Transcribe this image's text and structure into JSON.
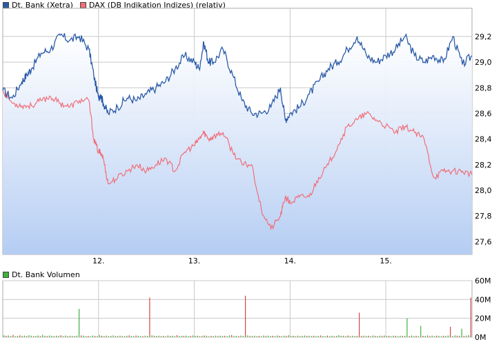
{
  "legend": {
    "series1": "Dt. Bank (Xetra)",
    "series2": "DAX (DB Indikation Indizes) (relativ)",
    "volume": "Dt. Bank Volumen"
  },
  "colors": {
    "price": "#2a5aa8",
    "dax": "#f06e78",
    "vol_green": "#3cb13c",
    "vol_red": "#d54545",
    "grid": "#c8c8c8"
  },
  "chart_data": [
    {
      "type": "line",
      "title": "",
      "x_ticks": [
        "12.",
        "13.",
        "14.",
        "15."
      ],
      "x_range": [
        0,
        4.9
      ],
      "y_ticks": [
        "29,2",
        "29,0",
        "28,8",
        "28,6",
        "28,4",
        "28,2",
        "28,0",
        "27,8",
        "27,6"
      ],
      "y_range": [
        27.5,
        29.42
      ],
      "grid": true,
      "legend_position": "top-left",
      "series": [
        {
          "name": "Dt. Bank (Xetra)",
          "x": [
            0,
            0.1,
            0.2,
            0.25,
            0.3,
            0.4,
            0.5,
            0.6,
            0.7,
            0.8,
            0.9,
            0.95,
            1.0,
            1.02,
            1.05,
            1.1,
            1.2,
            1.3,
            1.4,
            1.5,
            1.6,
            1.7,
            1.8,
            1.9,
            2.0,
            2.05,
            2.1,
            2.15,
            2.2,
            2.3,
            2.4,
            2.5,
            2.6,
            2.7,
            2.8,
            2.9,
            2.95,
            3.0,
            3.1,
            3.2,
            3.3,
            3.4,
            3.5,
            3.6,
            3.7,
            3.8,
            3.9,
            4.0,
            4.1,
            4.2,
            4.3,
            4.4,
            4.5,
            4.6,
            4.7,
            4.8,
            4.9
          ],
          "values": [
            28.78,
            28.72,
            28.85,
            28.9,
            28.95,
            29.07,
            29.1,
            29.21,
            29.17,
            29.2,
            29.1,
            28.9,
            28.72,
            28.75,
            28.68,
            28.6,
            28.65,
            28.72,
            28.7,
            28.75,
            28.8,
            28.85,
            28.95,
            29.05,
            29.0,
            28.95,
            29.15,
            29.0,
            29.0,
            29.1,
            28.9,
            28.7,
            28.6,
            28.6,
            28.65,
            28.8,
            28.55,
            28.6,
            28.65,
            28.75,
            28.85,
            28.95,
            29.0,
            29.1,
            29.2,
            29.05,
            29.0,
            29.05,
            29.1,
            29.2,
            29.05,
            29.0,
            29.05,
            29.0,
            29.2,
            28.98,
            29.05
          ]
        },
        {
          "name": "DAX (DB Indikation Indizes) (relativ)",
          "x": [
            0,
            0.1,
            0.2,
            0.3,
            0.4,
            0.5,
            0.6,
            0.7,
            0.8,
            0.9,
            0.95,
            1.0,
            1.02,
            1.05,
            1.1,
            1.2,
            1.3,
            1.4,
            1.5,
            1.6,
            1.7,
            1.8,
            1.9,
            2.0,
            2.05,
            2.1,
            2.15,
            2.2,
            2.3,
            2.4,
            2.5,
            2.6,
            2.7,
            2.8,
            2.9,
            2.95,
            3.0,
            3.1,
            3.2,
            3.3,
            3.4,
            3.5,
            3.6,
            3.7,
            3.8,
            3.9,
            4.0,
            4.1,
            4.2,
            4.3,
            4.4,
            4.5,
            4.6,
            4.7,
            4.8,
            4.9
          ],
          "values": [
            28.78,
            28.68,
            28.66,
            28.66,
            28.7,
            28.73,
            28.68,
            28.65,
            28.7,
            28.7,
            28.4,
            28.3,
            28.3,
            28.25,
            28.05,
            28.1,
            28.15,
            28.2,
            28.15,
            28.2,
            28.25,
            28.15,
            28.3,
            28.35,
            28.4,
            28.45,
            28.4,
            28.42,
            28.45,
            28.3,
            28.2,
            28.2,
            27.85,
            27.7,
            27.8,
            27.95,
            27.9,
            27.95,
            27.95,
            28.1,
            28.2,
            28.35,
            28.5,
            28.55,
            28.6,
            28.55,
            28.5,
            28.45,
            28.5,
            28.45,
            28.4,
            28.1,
            28.15,
            28.15,
            28.15,
            28.12
          ]
        }
      ]
    },
    {
      "type": "bar",
      "title": "",
      "y_ticks": [
        "60M",
        "40M",
        "20M",
        "0M"
      ],
      "y_range": [
        0,
        60
      ],
      "x_ticks": [],
      "legend_position": "top-left",
      "series": [
        {
          "name": "Dt. Bank Volumen",
          "values": [
            2,
            1.5,
            1.8,
            1.2,
            2.4,
            1,
            1.5,
            2,
            1.3,
            1.7,
            1.1,
            2.2,
            1.6,
            1,
            1.4,
            1.8,
            1.2,
            2.6,
            1.5,
            1.1,
            1.9,
            1.4,
            1,
            1.6,
            1.3,
            2.1,
            1.2,
            1.8,
            1,
            1.5,
            1.3,
            1.1,
            1.7,
            30,
            2,
            1.6,
            1.2,
            1.4,
            1,
            1.8,
            1.3,
            1.1,
            2.3,
            1.5,
            1.2,
            1.7,
            1,
            1.4,
            1.9,
            1.1,
            1.3,
            1.6,
            1.2,
            1,
            1.5,
            2,
            1.3,
            1.1,
            1.8,
            1.4,
            1.2,
            1,
            1.6,
            1.3,
            42,
            2.1,
            1.5,
            1.2,
            1.7,
            1.1,
            1.4,
            1,
            1.8,
            1.3,
            1.6,
            1.2,
            2.2,
            1.1,
            1.5,
            1.3,
            1.7,
            1,
            1.4,
            1.9,
            1.2,
            1.6,
            1.1,
            1.3,
            1.8,
            1.5,
            1,
            1.4,
            1.2,
            1.7,
            1.1,
            1.6,
            1.3,
            1.5,
            1,
            1.9,
            2.3,
            1.2,
            1.4,
            1.1,
            1.7,
            1.3,
            44,
            2,
            1.5,
            1.2,
            1.6,
            1.1,
            1.4,
            1,
            1.8,
            1.3,
            1.7,
            1.2,
            1.5,
            1.1,
            1.9,
            1.4,
            1,
            1.6,
            1.3,
            2.1,
            1.2,
            1.5,
            1.1,
            1.7,
            1,
            1.4,
            1.8,
            1.3,
            1.6,
            1.2,
            1.5,
            1.1,
            1.3,
            1.9,
            1.4,
            1,
            1.7,
            1.2,
            1.6,
            1.1,
            1.4,
            2.2,
            1.3,
            1.5,
            1,
            1.8,
            1.2,
            1.6,
            1.1,
            1.4,
            26,
            1.3,
            1.7,
            1.2,
            1.5,
            1,
            1.9,
            1.4,
            1.1,
            1.6,
            1.3,
            1.8,
            1.2,
            1.5,
            1.1,
            1.7,
            1.4,
            1,
            1.6,
            1.3,
            1.5,
            20,
            1.2,
            1.8,
            1.1,
            1.4,
            1,
            12,
            1.5,
            1.3,
            1.9,
            1.2,
            1.6,
            1.1,
            1.7,
            1.4,
            1,
            1.5,
            1.3,
            1.8,
            11,
            1.2,
            2,
            1.6,
            1.4,
            9,
            1.3,
            1.7,
            2.2,
            42
          ]
        }
      ]
    }
  ]
}
